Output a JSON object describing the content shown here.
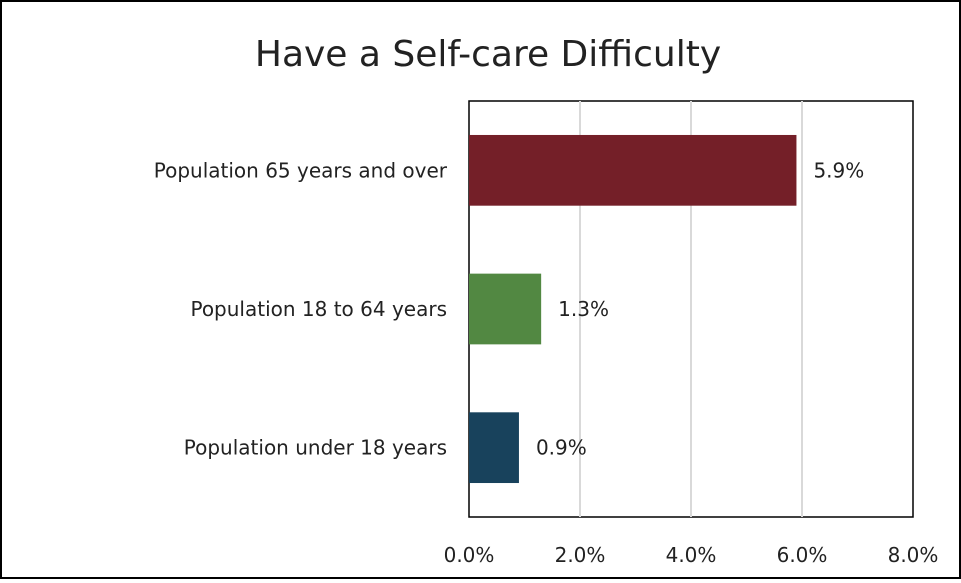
{
  "chart_data": {
    "type": "bar",
    "orientation": "horizontal",
    "title": "Have a Self-care Difficulty",
    "categories": [
      "Population 65 years and over",
      "Population 18 to 64 years",
      "Population under 18 years"
    ],
    "values": [
      5.9,
      1.3,
      0.9
    ],
    "value_labels": [
      "5.9%",
      "1.3%",
      "0.9%"
    ],
    "bar_colors": [
      "#741F28",
      "#528842",
      "#18425C"
    ],
    "xlim": [
      0,
      8
    ],
    "x_ticks": [
      0,
      2,
      4,
      6,
      8
    ],
    "x_tick_labels": [
      "0.0%",
      "2.0%",
      "4.0%",
      "6.0%",
      "8.0%"
    ],
    "grid": "vertical",
    "legend": "none"
  }
}
